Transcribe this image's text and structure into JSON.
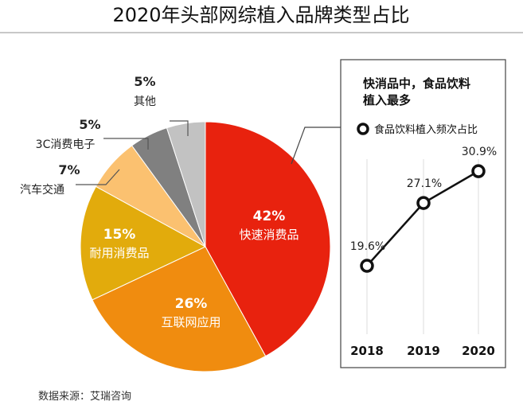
{
  "title": "2020年头部网综植入品牌类型占比",
  "source": "数据来源：艾瑞咨询",
  "chart_data": [
    {
      "type": "pie",
      "slices": [
        {
          "label": "快速消费品",
          "value": 42,
          "pct_text": "42%",
          "color": "#e8220e",
          "label_pos": "inside"
        },
        {
          "label": "互联网应用",
          "value": 26,
          "pct_text": "26%",
          "color": "#f08c0f",
          "label_pos": "inside"
        },
        {
          "label": "耐用消费品",
          "value": 15,
          "pct_text": "15%",
          "color": "#e2ab0c",
          "label_pos": "inside"
        },
        {
          "label": "汽车交通",
          "value": 7,
          "pct_text": "7%",
          "color": "#fbc170",
          "label_pos": "outside"
        },
        {
          "label": "3C消费电子",
          "value": 5,
          "pct_text": "5%",
          "color": "#808080",
          "label_pos": "outside"
        },
        {
          "label": "其他",
          "value": 5,
          "pct_text": "5%",
          "color": "#c2c2c2",
          "label_pos": "outside"
        }
      ]
    },
    {
      "type": "line",
      "title_lines": [
        "快消品中，食品饮料",
        "植入最多"
      ],
      "series": [
        {
          "name": "食品饮料植入频次占比",
          "values": [
            19.6,
            27.1,
            30.9
          ],
          "labels": [
            "19.6%",
            "27.1%",
            "30.9%"
          ]
        }
      ],
      "x": [
        "2018",
        "2019",
        "2020"
      ],
      "ylim": [
        10,
        35
      ],
      "grid": false,
      "legend_position": "top"
    }
  ]
}
